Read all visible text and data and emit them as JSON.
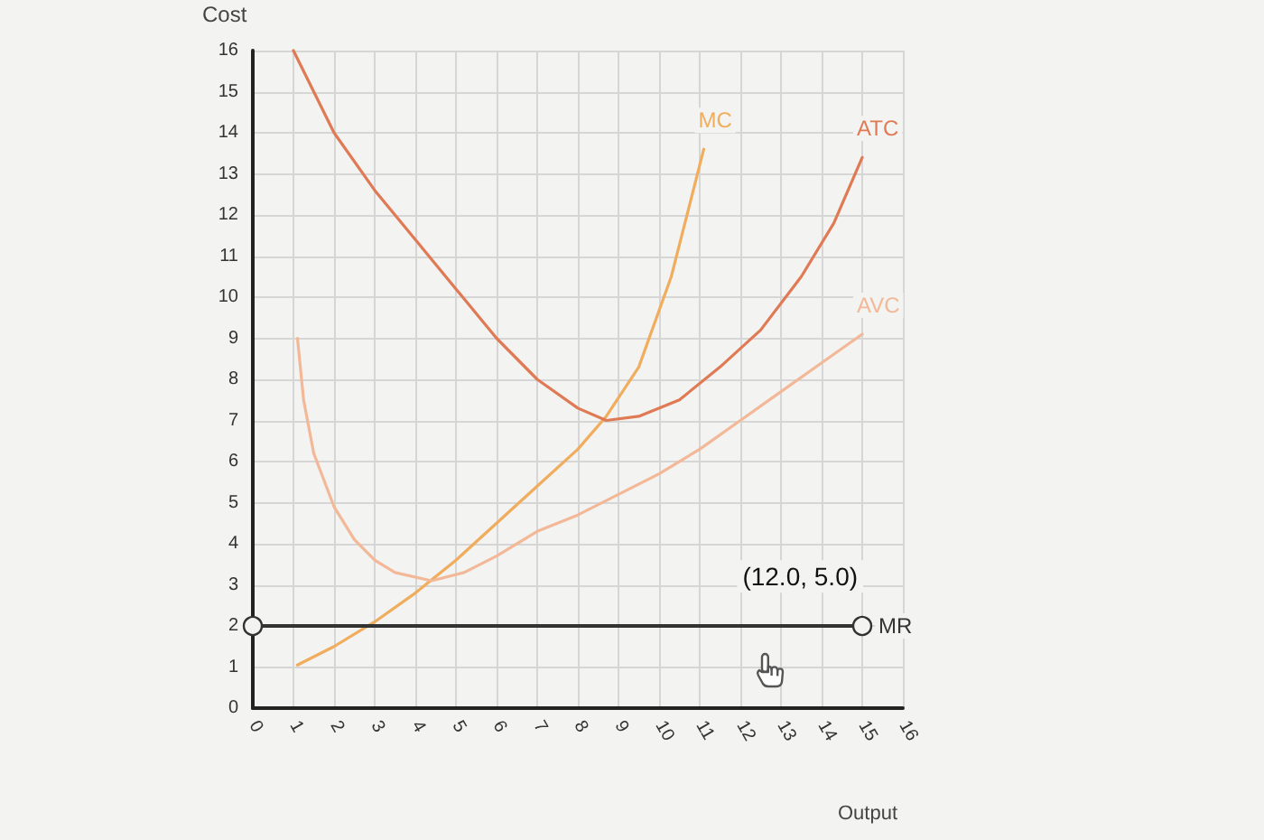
{
  "chart_data": {
    "type": "line",
    "xlabel": "Output",
    "ylabel": "Cost",
    "xlim": [
      0,
      16
    ],
    "ylim": [
      0,
      16
    ],
    "xticks": [
      0,
      1,
      2,
      3,
      4,
      5,
      6,
      7,
      8,
      9,
      10,
      11,
      12,
      13,
      14,
      15,
      16
    ],
    "yticks": [
      0,
      1,
      2,
      3,
      4,
      5,
      6,
      7,
      8,
      9,
      10,
      11,
      12,
      13,
      14,
      15,
      16
    ],
    "grid": true,
    "marker": "none",
    "annotations": [
      "(12.0, 5.0)"
    ],
    "series": [
      {
        "name": "MC",
        "color": "#f0ad5e",
        "x": [
          1.1,
          2,
          3,
          4,
          5,
          6,
          7,
          8,
          8.7,
          9.5,
          10.3,
          11.1
        ],
        "values": [
          1.05,
          1.5,
          2.1,
          2.8,
          3.6,
          4.5,
          5.4,
          6.3,
          7.1,
          8.3,
          10.5,
          13.6
        ]
      },
      {
        "name": "ATC",
        "color": "#e07a55",
        "x": [
          1,
          1.5,
          2,
          3,
          4,
          5,
          6,
          7,
          8,
          8.7,
          9.5,
          10.5,
          11.5,
          12.5,
          13.5,
          14.3,
          15
        ],
        "values": [
          16,
          15,
          14,
          12.6,
          11.4,
          10.2,
          9,
          8,
          7.3,
          7,
          7.1,
          7.5,
          8.3,
          9.2,
          10.5,
          11.8,
          13.4
        ]
      },
      {
        "name": "AVC",
        "color": "#f2b898",
        "x": [
          1.1,
          1.25,
          1.5,
          2,
          2.5,
          3,
          3.5,
          4.4,
          5.2,
          6,
          7,
          8,
          9,
          10,
          11,
          12,
          13,
          14,
          15
        ],
        "values": [
          9,
          7.5,
          6.2,
          4.9,
          4.1,
          3.6,
          3.3,
          3.1,
          3.3,
          3.7,
          4.3,
          4.7,
          5.2,
          5.7,
          6.3,
          7,
          7.7,
          8.4,
          9.1
        ]
      },
      {
        "name": "MR",
        "color": "#333333",
        "x": [
          0,
          15
        ],
        "values": [
          2,
          2
        ],
        "marker": "circle"
      }
    ]
  }
}
